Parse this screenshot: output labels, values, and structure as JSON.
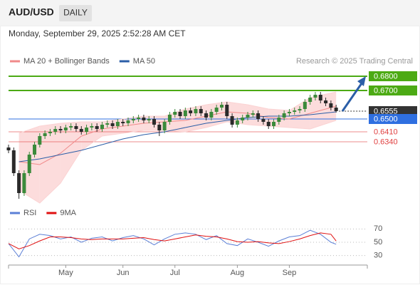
{
  "header": {
    "symbol": "AUD/USD",
    "timeframe": "DAILY",
    "timestamp": "Monday, September 29, 2025 2:52:28 AM CET"
  },
  "chart_data": [
    {
      "type": "candlestick",
      "credit": "Research © 2025 Trading Central",
      "ylim": [
        0.592,
        0.686
      ],
      "xlim": [
        0,
        69
      ],
      "up_color": "#3b8a3b",
      "down_color": "#2a2a2a",
      "x": [
        0,
        1,
        2,
        3,
        4,
        5,
        6,
        7,
        8,
        9,
        10,
        11,
        12,
        13,
        14,
        15,
        16,
        17,
        18,
        19,
        20,
        21,
        22,
        23,
        24,
        25,
        26,
        27,
        28,
        29,
        30,
        31,
        32,
        33,
        34,
        35,
        36,
        37,
        38,
        39,
        40,
        41,
        42,
        43,
        44,
        45,
        46,
        47,
        48,
        49,
        50,
        51,
        52,
        53,
        54,
        55,
        56,
        57,
        58,
        59,
        60,
        61,
        62,
        63
      ],
      "open": [
        0.63,
        0.628,
        0.612,
        0.598,
        0.612,
        0.625,
        0.632,
        0.638,
        0.64,
        0.641,
        0.643,
        0.642,
        0.644,
        0.645,
        0.643,
        0.641,
        0.644,
        0.645,
        0.643,
        0.646,
        0.647,
        0.645,
        0.648,
        0.647,
        0.649,
        0.65,
        0.651,
        0.649,
        0.65,
        0.646,
        0.642,
        0.648,
        0.653,
        0.655,
        0.652,
        0.656,
        0.654,
        0.657,
        0.654,
        0.651,
        0.655,
        0.658,
        0.66,
        0.652,
        0.646,
        0.649,
        0.651,
        0.653,
        0.654,
        0.65,
        0.648,
        0.645,
        0.648,
        0.651,
        0.654,
        0.655,
        0.656,
        0.657,
        0.662,
        0.665,
        0.667,
        0.663,
        0.661,
        0.658
      ],
      "high": [
        0.632,
        0.63,
        0.614,
        0.614,
        0.627,
        0.634,
        0.64,
        0.642,
        0.643,
        0.645,
        0.645,
        0.646,
        0.647,
        0.647,
        0.645,
        0.646,
        0.647,
        0.647,
        0.648,
        0.649,
        0.649,
        0.65,
        0.65,
        0.651,
        0.652,
        0.653,
        0.653,
        0.652,
        0.652,
        0.648,
        0.65,
        0.655,
        0.657,
        0.657,
        0.658,
        0.658,
        0.659,
        0.659,
        0.656,
        0.657,
        0.66,
        0.662,
        0.662,
        0.654,
        0.651,
        0.653,
        0.655,
        0.656,
        0.656,
        0.652,
        0.65,
        0.65,
        0.653,
        0.656,
        0.657,
        0.658,
        0.659,
        0.664,
        0.667,
        0.669,
        0.669,
        0.665,
        0.663,
        0.66
      ],
      "low": [
        0.626,
        0.61,
        0.594,
        0.596,
        0.61,
        0.623,
        0.63,
        0.636,
        0.638,
        0.639,
        0.64,
        0.64,
        0.642,
        0.641,
        0.639,
        0.639,
        0.642,
        0.641,
        0.641,
        0.644,
        0.643,
        0.643,
        0.645,
        0.645,
        0.647,
        0.648,
        0.647,
        0.647,
        0.644,
        0.638,
        0.64,
        0.646,
        0.651,
        0.65,
        0.65,
        0.652,
        0.652,
        0.652,
        0.649,
        0.649,
        0.653,
        0.656,
        0.65,
        0.644,
        0.644,
        0.647,
        0.649,
        0.651,
        0.648,
        0.646,
        0.643,
        0.643,
        0.646,
        0.649,
        0.652,
        0.653,
        0.654,
        0.655,
        0.66,
        0.663,
        0.661,
        0.659,
        0.656,
        0.6545
      ],
      "close": [
        0.628,
        0.612,
        0.598,
        0.612,
        0.625,
        0.632,
        0.638,
        0.64,
        0.641,
        0.643,
        0.642,
        0.644,
        0.645,
        0.643,
        0.641,
        0.644,
        0.645,
        0.643,
        0.646,
        0.647,
        0.645,
        0.648,
        0.647,
        0.649,
        0.65,
        0.651,
        0.649,
        0.65,
        0.646,
        0.642,
        0.648,
        0.653,
        0.655,
        0.652,
        0.656,
        0.654,
        0.657,
        0.654,
        0.651,
        0.655,
        0.658,
        0.66,
        0.652,
        0.646,
        0.649,
        0.651,
        0.653,
        0.654,
        0.65,
        0.648,
        0.645,
        0.648,
        0.651,
        0.654,
        0.655,
        0.656,
        0.657,
        0.662,
        0.665,
        0.667,
        0.663,
        0.661,
        0.658,
        0.6555
      ],
      "series": [
        {
          "name": "MA 20 + Bollinger Bands",
          "color": "#f08a8a",
          "band_color": "#fbd3d3",
          "x": [
            2,
            6,
            10,
            14,
            18,
            22,
            26,
            30,
            34,
            38,
            42,
            46,
            50,
            54,
            58,
            63
          ],
          "values": [
            0.62,
            0.618,
            0.626,
            0.638,
            0.643,
            0.645,
            0.647,
            0.648,
            0.649,
            0.652,
            0.655,
            0.654,
            0.651,
            0.65,
            0.654,
            0.659
          ],
          "upper": [
            0.64,
            0.645,
            0.647,
            0.648,
            0.648,
            0.65,
            0.652,
            0.652,
            0.657,
            0.66,
            0.662,
            0.66,
            0.657,
            0.656,
            0.665,
            0.669
          ],
          "lower": [
            0.6,
            0.591,
            0.605,
            0.628,
            0.638,
            0.64,
            0.642,
            0.642,
            0.641,
            0.644,
            0.648,
            0.646,
            0.645,
            0.644,
            0.643,
            0.649
          ]
        },
        {
          "name": "MA 50",
          "color": "#2b5ea7",
          "x": [
            2,
            6,
            10,
            14,
            18,
            22,
            26,
            30,
            34,
            38,
            42,
            46,
            50,
            54,
            58,
            63
          ],
          "values": [
            0.62,
            0.622,
            0.625,
            0.628,
            0.632,
            0.636,
            0.639,
            0.641,
            0.644,
            0.647,
            0.649,
            0.651,
            0.652,
            0.652,
            0.653,
            0.655
          ]
        }
      ],
      "levels": [
        {
          "value": 0.68,
          "label": "0.6800",
          "color": "#4caa14",
          "box": true
        },
        {
          "value": 0.67,
          "label": "0.6700",
          "color": "#4caa14",
          "box": true
        },
        {
          "value": 0.6555,
          "label": "0.6555",
          "color": "#333333",
          "box": true,
          "dotted": true
        },
        {
          "value": 0.65,
          "label": "0.6500",
          "color": "#2f6fe0",
          "box": true
        },
        {
          "value": 0.641,
          "label": "0.6410",
          "color": "#e04040",
          "box": false
        },
        {
          "value": 0.634,
          "label": "0.6340",
          "color": "#e04040",
          "box": false
        }
      ]
    },
    {
      "type": "line",
      "ylim": [
        20,
        80
      ],
      "yticks": [
        30,
        50,
        70
      ],
      "xlim": [
        0,
        69
      ],
      "xticks": [
        {
          "value": 11,
          "label": "May"
        },
        {
          "value": 22,
          "label": "Jun"
        },
        {
          "value": 32,
          "label": "Jul"
        },
        {
          "value": 44,
          "label": "Aug"
        },
        {
          "value": 54,
          "label": "Sep"
        }
      ],
      "series": [
        {
          "name": "RSI",
          "color": "#5b7fd6",
          "x": [
            0,
            2,
            4,
            6,
            8,
            10,
            12,
            14,
            16,
            18,
            20,
            22,
            24,
            26,
            28,
            30,
            32,
            34,
            36,
            38,
            40,
            42,
            44,
            46,
            48,
            50,
            52,
            54,
            56,
            58,
            60,
            62,
            63
          ],
          "values": [
            48,
            28,
            55,
            62,
            60,
            55,
            58,
            50,
            56,
            58,
            52,
            57,
            60,
            55,
            46,
            55,
            62,
            64,
            62,
            54,
            60,
            48,
            45,
            55,
            50,
            44,
            52,
            58,
            60,
            68,
            62,
            50,
            47
          ]
        },
        {
          "name": "9MA",
          "color": "#e01010",
          "x": [
            0,
            2,
            4,
            6,
            8,
            10,
            12,
            14,
            16,
            18,
            20,
            22,
            24,
            26,
            28,
            30,
            32,
            34,
            36,
            38,
            40,
            42,
            44,
            46,
            48,
            50,
            52,
            54,
            56,
            58,
            60,
            62,
            63
          ],
          "values": [
            48,
            40,
            45,
            52,
            58,
            58,
            57,
            55,
            54,
            55,
            55,
            55,
            56,
            57,
            54,
            52,
            55,
            58,
            61,
            59,
            58,
            55,
            51,
            50,
            51,
            49,
            48,
            51,
            55,
            60,
            64,
            62,
            52
          ]
        }
      ]
    }
  ]
}
